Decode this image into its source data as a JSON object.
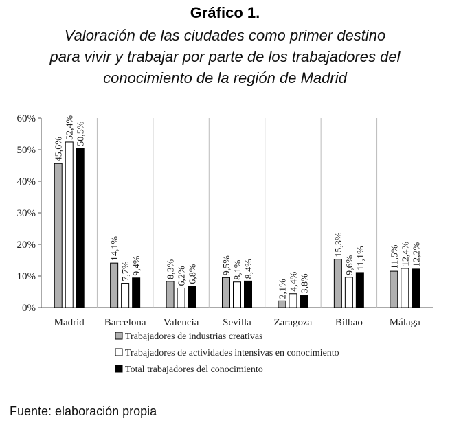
{
  "header": {
    "title": "Gráfico 1.",
    "subtitle_lines": [
      "Valoración de las ciudades como primer destino",
      "para vivir y trabajar por parte de los trabajadores del",
      "conocimiento de la región de Madrid"
    ]
  },
  "footer": {
    "source": "Fuente: elaboración propia"
  },
  "chart_data": {
    "type": "bar",
    "categories": [
      "Madrid",
      "Barcelona",
      "Valencia",
      "Sevilla",
      "Zaragoza",
      "Bilbao",
      "Málaga"
    ],
    "series": [
      {
        "name": "Trabajadores de industrias creativas",
        "color": "#b0b0b0",
        "values": [
          45.6,
          14.1,
          8.3,
          9.5,
          2.1,
          15.3,
          11.5
        ],
        "labels": [
          "45,6%",
          "14,1%",
          "8,3%",
          "9,5%",
          "2,1%",
          "15,3%",
          "11,5%"
        ]
      },
      {
        "name": "Trabajadores de actividades intensivas en conocimiento",
        "color": "#ffffff",
        "values": [
          52.4,
          7.7,
          6.2,
          8.1,
          4.4,
          9.6,
          12.4
        ],
        "labels": [
          "52,4%",
          "7,7%",
          "6,2%",
          "8,1%",
          "4,4%",
          "9,6%",
          "12,4%"
        ]
      },
      {
        "name": "Total trabajadores del conocimiento",
        "color": "#000000",
        "values": [
          50.5,
          9.4,
          6.8,
          8.4,
          3.8,
          11.1,
          12.2
        ],
        "labels": [
          "50,5%",
          "9,4%",
          "6,8%",
          "8,4%",
          "3,8%",
          "11,1%",
          "12,2%"
        ]
      }
    ],
    "yticks": [
      0,
      10,
      20,
      30,
      40,
      50,
      60
    ],
    "ytick_labels": [
      "0%",
      "10%",
      "20%",
      "30%",
      "40%",
      "50%",
      "60%"
    ],
    "ylim": [
      0,
      60
    ],
    "xlabel": "",
    "ylabel": "",
    "grid": "vertical separators between categories",
    "legend": "bottom"
  }
}
